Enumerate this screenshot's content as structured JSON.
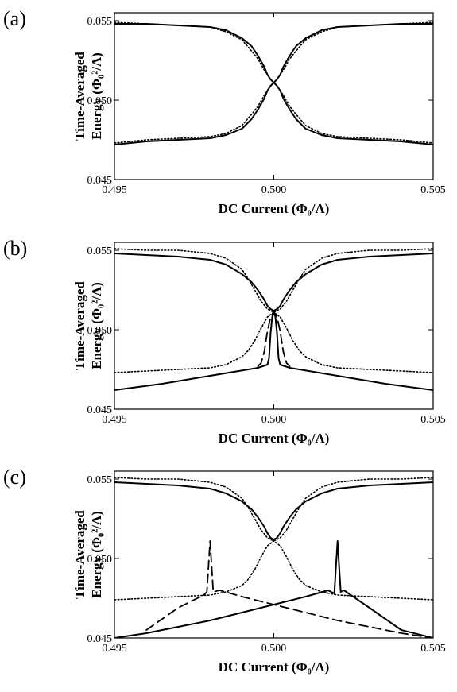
{
  "chart_data": [
    {
      "type": "line",
      "panel_label": "(a)",
      "xlabel": "DC Current (Φ₀/Λ)",
      "ylabel_line1": "Time-Averaged",
      "ylabel_line2": "Energy (Φ₀²/Λ)",
      "xlim": [
        0.495,
        0.505
      ],
      "ylim": [
        0.045,
        0.0555
      ],
      "xticks": [
        0.495,
        0.5,
        0.505
      ],
      "xtick_labels": [
        "0.495",
        "0.500",
        "0.505"
      ],
      "yticks": [
        0.045,
        0.05,
        0.055
      ],
      "ytick_labels": [
        "0.045",
        "0.050",
        "0.055"
      ],
      "grid": false,
      "series": [
        {
          "style": "solid",
          "x": [
            0.495,
            0.496,
            0.497,
            0.498,
            0.4985,
            0.499,
            0.4993,
            0.4995,
            0.4997,
            0.4998,
            0.4999,
            0.5,
            0.5001,
            0.5002,
            0.5003,
            0.5005,
            0.5007,
            0.501,
            0.5015,
            0.502,
            0.503,
            0.504,
            0.505
          ],
          "y": [
            0.0548,
            0.0548,
            0.0547,
            0.0546,
            0.0544,
            0.0539,
            0.0534,
            0.0528,
            0.0521,
            0.0516,
            0.0513,
            0.0511,
            0.0513,
            0.0516,
            0.0521,
            0.0528,
            0.0534,
            0.0539,
            0.0544,
            0.0546,
            0.0547,
            0.0548,
            0.0548
          ]
        },
        {
          "style": "solid",
          "x": [
            0.495,
            0.496,
            0.497,
            0.498,
            0.4985,
            0.499,
            0.4993,
            0.4995,
            0.4997,
            0.4998,
            0.4999,
            0.5,
            0.5001,
            0.5002,
            0.5003,
            0.5005,
            0.5007,
            0.501,
            0.5015,
            0.502,
            0.503,
            0.504,
            0.505
          ],
          "y": [
            0.0472,
            0.0474,
            0.0475,
            0.0476,
            0.0478,
            0.0482,
            0.0488,
            0.0494,
            0.0501,
            0.0506,
            0.0509,
            0.0511,
            0.0509,
            0.0506,
            0.0501,
            0.0494,
            0.0488,
            0.0482,
            0.0478,
            0.0476,
            0.0475,
            0.0474,
            0.0472
          ]
        },
        {
          "style": "dotted",
          "x": [
            0.495,
            0.496,
            0.497,
            0.498,
            0.4985,
            0.499,
            0.4993,
            0.4995,
            0.4997,
            0.4999,
            0.5,
            0.5001,
            0.5003,
            0.5005,
            0.5007,
            0.501,
            0.5015,
            0.502,
            0.503,
            0.504,
            0.505
          ],
          "y": [
            0.0549,
            0.0548,
            0.0547,
            0.0546,
            0.0543,
            0.0538,
            0.0531,
            0.0526,
            0.0519,
            0.0513,
            0.0511,
            0.0513,
            0.0519,
            0.0526,
            0.0531,
            0.0538,
            0.0543,
            0.0546,
            0.0547,
            0.0548,
            0.0549
          ]
        },
        {
          "style": "dotted",
          "x": [
            0.495,
            0.496,
            0.497,
            0.498,
            0.4985,
            0.499,
            0.4993,
            0.4995,
            0.4997,
            0.4999,
            0.5,
            0.5001,
            0.5003,
            0.5005,
            0.5007,
            0.501,
            0.5015,
            0.502,
            0.503,
            0.504,
            0.505
          ],
          "y": [
            0.0473,
            0.0475,
            0.0476,
            0.0477,
            0.0479,
            0.0484,
            0.0491,
            0.0496,
            0.0503,
            0.0509,
            0.0511,
            0.0509,
            0.0503,
            0.0496,
            0.0491,
            0.0484,
            0.0479,
            0.0477,
            0.0476,
            0.0475,
            0.0473
          ]
        }
      ]
    },
    {
      "type": "line",
      "panel_label": "(b)",
      "xlabel": "DC Current (Φ₀/Λ)",
      "ylabel_line1": "Time-Averaged",
      "ylabel_line2": "Energy (Φ₀²/Λ)",
      "xlim": [
        0.495,
        0.505
      ],
      "ylim": [
        0.045,
        0.0555
      ],
      "xticks": [
        0.495,
        0.5,
        0.505
      ],
      "xtick_labels": [
        "0.495",
        "0.500",
        "0.505"
      ],
      "yticks": [
        0.045,
        0.05,
        0.055
      ],
      "ytick_labels": [
        "0.045",
        "0.050",
        "0.055"
      ],
      "grid": false,
      "series": [
        {
          "style": "solid",
          "x": [
            0.495,
            0.496,
            0.497,
            0.498,
            0.4985,
            0.499,
            0.4993,
            0.4995,
            0.4997,
            0.4998,
            0.4999,
            0.5,
            0.5001,
            0.5002,
            0.5003,
            0.5005,
            0.5007,
            0.501,
            0.5015,
            0.502,
            0.503,
            0.504,
            0.505
          ],
          "y": [
            0.0548,
            0.0547,
            0.0546,
            0.0544,
            0.0541,
            0.0535,
            0.053,
            0.0525,
            0.0519,
            0.0515,
            0.0513,
            0.0512,
            0.0513,
            0.0515,
            0.0519,
            0.0525,
            0.053,
            0.0535,
            0.0541,
            0.0544,
            0.0546,
            0.0547,
            0.0548
          ]
        },
        {
          "style": "dotted",
          "x": [
            0.495,
            0.496,
            0.497,
            0.498,
            0.4985,
            0.499,
            0.4992,
            0.4994,
            0.4996,
            0.4998,
            0.5,
            0.5002,
            0.5004,
            0.5006,
            0.5008,
            0.501,
            0.5015,
            0.502,
            0.503,
            0.504,
            0.505
          ],
          "y": [
            0.0551,
            0.055,
            0.055,
            0.0548,
            0.0545,
            0.0538,
            0.0532,
            0.0525,
            0.0518,
            0.0513,
            0.0511,
            0.0513,
            0.0518,
            0.0525,
            0.0532,
            0.0538,
            0.0545,
            0.0548,
            0.055,
            0.055,
            0.0551
          ]
        },
        {
          "style": "dotted",
          "x": [
            0.495,
            0.496,
            0.497,
            0.498,
            0.4985,
            0.499,
            0.4992,
            0.4994,
            0.4996,
            0.4998,
            0.5,
            0.5002,
            0.5004,
            0.5006,
            0.5008,
            0.501,
            0.5015,
            0.502,
            0.503,
            0.504,
            0.505
          ],
          "y": [
            0.0473,
            0.0474,
            0.0475,
            0.0476,
            0.0478,
            0.0483,
            0.0487,
            0.0493,
            0.0501,
            0.0508,
            0.0511,
            0.0508,
            0.0501,
            0.0493,
            0.0487,
            0.0483,
            0.0478,
            0.0476,
            0.0475,
            0.0474,
            0.0473
          ]
        },
        {
          "style": "dashed",
          "x": [
            0.4995,
            0.4996,
            0.4997,
            0.4998,
            0.4999,
            0.5,
            0.5001,
            0.5002,
            0.5003,
            0.5004,
            0.5005
          ],
          "y": [
            0.0477,
            0.0479,
            0.0486,
            0.0499,
            0.0508,
            0.0511,
            0.0508,
            0.0499,
            0.0486,
            0.0479,
            0.0477
          ]
        },
        {
          "style": "solid",
          "x": [
            0.495,
            0.4965,
            0.498,
            0.4995,
            0.4998,
            0.49985,
            0.4999,
            0.49995,
            0.5,
            0.50005,
            0.5001,
            0.50015,
            0.5002,
            0.5005,
            0.502,
            0.5035,
            0.505
          ],
          "y": [
            0.0462,
            0.0466,
            0.0471,
            0.0476,
            0.0478,
            0.0482,
            0.0498,
            0.0508,
            0.0511,
            0.0508,
            0.0498,
            0.0482,
            0.0478,
            0.0476,
            0.0471,
            0.0466,
            0.0462
          ]
        }
      ]
    },
    {
      "type": "line",
      "panel_label": "(c)",
      "xlabel": "DC Current (Φ₀/Λ)",
      "ylabel_line1": "Time-Averaged",
      "ylabel_line2": "Energy (Φ₀²/Λ)",
      "xlim": [
        0.495,
        0.505
      ],
      "ylim": [
        0.045,
        0.0555
      ],
      "xticks": [
        0.495,
        0.5,
        0.505
      ],
      "xtick_labels": [
        "0.495",
        "0.500",
        "0.505"
      ],
      "yticks": [
        0.045,
        0.05,
        0.055
      ],
      "ytick_labels": [
        "0.045",
        "0.050",
        "0.055"
      ],
      "grid": false,
      "series": [
        {
          "style": "solid",
          "x": [
            0.495,
            0.496,
            0.497,
            0.498,
            0.4985,
            0.499,
            0.4993,
            0.4995,
            0.4997,
            0.4998,
            0.4999,
            0.5,
            0.5001,
            0.5002,
            0.5003,
            0.5005,
            0.5007,
            0.501,
            0.5015,
            0.502,
            0.503,
            0.504,
            0.505
          ],
          "y": [
            0.0548,
            0.0547,
            0.0546,
            0.0544,
            0.0541,
            0.0536,
            0.0531,
            0.0526,
            0.052,
            0.0516,
            0.0513,
            0.0512,
            0.0513,
            0.0516,
            0.052,
            0.0526,
            0.0531,
            0.0536,
            0.0541,
            0.0544,
            0.0546,
            0.0547,
            0.0548
          ]
        },
        {
          "style": "dotted",
          "x": [
            0.495,
            0.496,
            0.497,
            0.498,
            0.4985,
            0.499,
            0.4992,
            0.4994,
            0.4996,
            0.4998,
            0.5,
            0.5002,
            0.5004,
            0.5006,
            0.5008,
            0.501,
            0.5015,
            0.502,
            0.503,
            0.504,
            0.505
          ],
          "y": [
            0.0551,
            0.055,
            0.055,
            0.0548,
            0.0545,
            0.0538,
            0.0532,
            0.0525,
            0.0518,
            0.0513,
            0.0511,
            0.0513,
            0.0518,
            0.0525,
            0.0532,
            0.0538,
            0.0545,
            0.0548,
            0.055,
            0.055,
            0.0551
          ]
        },
        {
          "style": "dotted",
          "x": [
            0.495,
            0.496,
            0.497,
            0.498,
            0.4985,
            0.499,
            0.4992,
            0.4994,
            0.4996,
            0.4998,
            0.5,
            0.5002,
            0.5004,
            0.5006,
            0.5008,
            0.501,
            0.5015,
            0.502,
            0.503,
            0.504,
            0.505
          ],
          "y": [
            0.0474,
            0.0475,
            0.0476,
            0.0477,
            0.0479,
            0.0483,
            0.0487,
            0.0493,
            0.0501,
            0.0508,
            0.0511,
            0.0508,
            0.0501,
            0.0493,
            0.0487,
            0.0483,
            0.0479,
            0.0477,
            0.0476,
            0.0475,
            0.0474
          ]
        },
        {
          "style": "dashed",
          "x": [
            0.496,
            0.497,
            0.4978,
            0.4979,
            0.49795,
            0.498,
            0.49805,
            0.4981,
            0.4983,
            0.499,
            0.5,
            0.501,
            0.502,
            0.503,
            0.504,
            0.505
          ],
          "y": [
            0.0455,
            0.0469,
            0.0477,
            0.0479,
            0.0495,
            0.0511,
            0.0495,
            0.0479,
            0.048,
            0.0476,
            0.0471,
            0.0466,
            0.0461,
            0.0457,
            0.0453,
            0.045
          ]
        },
        {
          "style": "solid",
          "x": [
            0.495,
            0.496,
            0.497,
            0.498,
            0.499,
            0.5,
            0.501,
            0.5017,
            0.5019,
            0.50195,
            0.502,
            0.50205,
            0.5021,
            0.5022,
            0.503,
            0.504,
            0.505
          ],
          "y": [
            0.045,
            0.0453,
            0.0457,
            0.0461,
            0.0466,
            0.0471,
            0.0476,
            0.048,
            0.0478,
            0.0495,
            0.0511,
            0.0495,
            0.0479,
            0.048,
            0.0469,
            0.0455,
            0.045
          ]
        }
      ]
    }
  ]
}
